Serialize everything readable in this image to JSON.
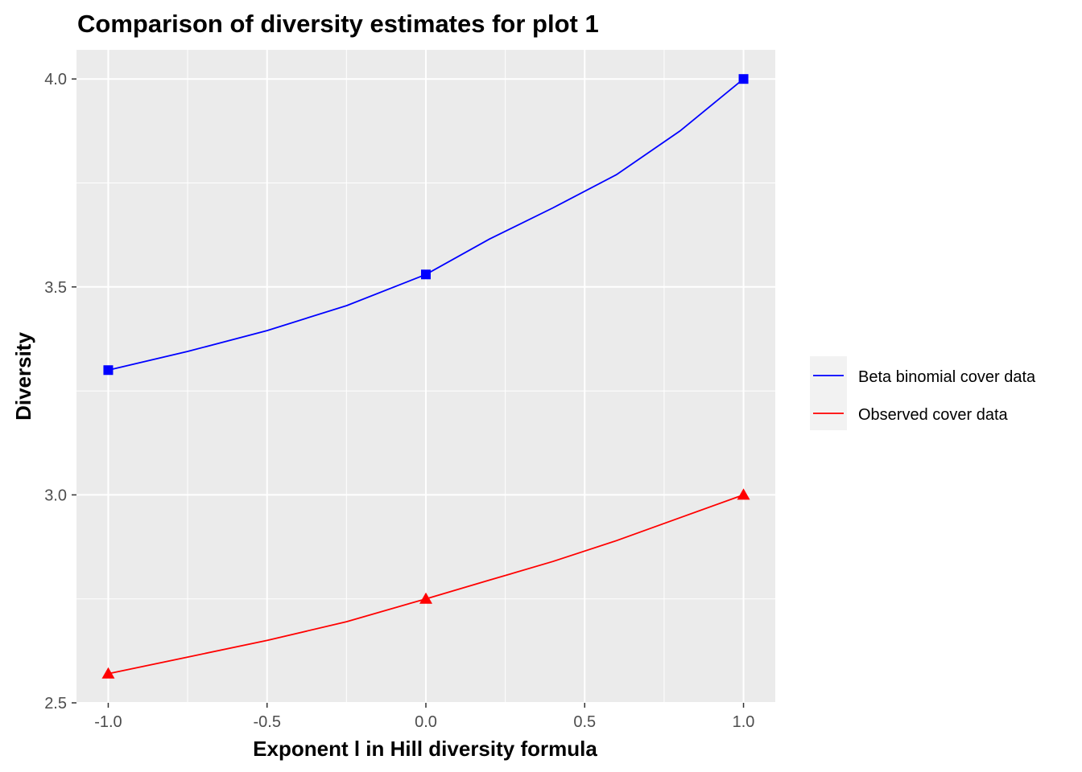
{
  "chart_data": {
    "type": "line",
    "title": "Comparison of diversity estimates for plot 1",
    "xlabel": "Exponent l in Hill diversity formula",
    "ylabel": "Diversity",
    "xlim": [
      -1.1,
      1.1
    ],
    "ylim": [
      2.5,
      4.07
    ],
    "x_ticks": [
      -1.0,
      -0.5,
      0.0,
      0.5,
      1.0
    ],
    "x_tick_labels": [
      "-1.0",
      "-0.5",
      "0.0",
      "0.5",
      "1.0"
    ],
    "y_ticks": [
      2.5,
      3.0,
      3.5,
      4.0
    ],
    "y_tick_labels": [
      "2.5",
      "3.0",
      "3.5",
      "4.0"
    ],
    "grid": true,
    "legend_position": "right",
    "series": [
      {
        "name": "Beta binomial cover data",
        "color": "#0000ff",
        "marker": "square",
        "points_x": [
          -1,
          0,
          1
        ],
        "points_y": [
          3.3,
          3.53,
          4.0
        ],
        "curve_x": [
          -1,
          -0.75,
          -0.5,
          -0.25,
          0,
          0.2,
          0.4,
          0.6,
          0.8,
          1
        ],
        "curve_y": [
          3.3,
          3.345,
          3.395,
          3.455,
          3.53,
          3.615,
          3.69,
          3.77,
          3.875,
          4.0
        ]
      },
      {
        "name": "Observed cover data",
        "color": "#ff0000",
        "marker": "triangle",
        "points_x": [
          -1,
          0,
          1
        ],
        "points_y": [
          2.57,
          2.75,
          3.0
        ],
        "curve_x": [
          -1,
          -0.75,
          -0.5,
          -0.25,
          0,
          0.2,
          0.4,
          0.6,
          0.8,
          1
        ],
        "curve_y": [
          2.57,
          2.61,
          2.65,
          2.695,
          2.75,
          2.795,
          2.84,
          2.89,
          2.945,
          3.0
        ]
      }
    ]
  }
}
